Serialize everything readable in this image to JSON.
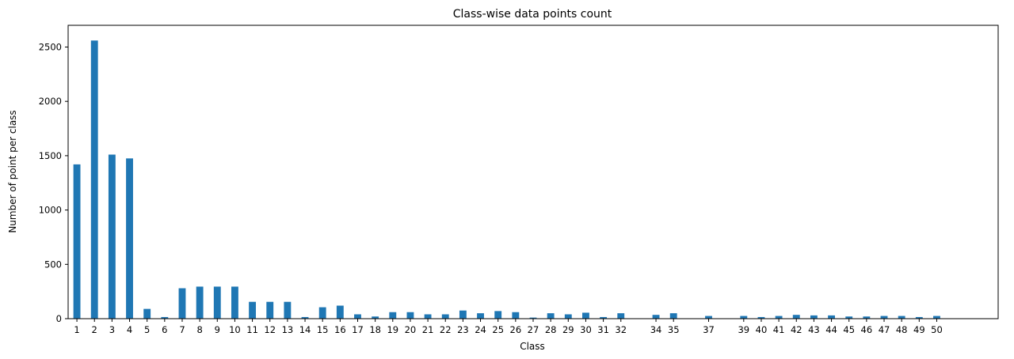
{
  "chart_data": {
    "type": "bar",
    "title": "Class-wise data points count",
    "xlabel": "Class",
    "ylabel": "Number of point per class",
    "ylim": [
      0,
      2700
    ],
    "xlim": [
      -0.5,
      52.5
    ],
    "yticks": [
      0,
      500,
      1000,
      1500,
      2000,
      2500
    ],
    "bar_width": 0.4,
    "bar_color": "#1f77b4",
    "grid": false,
    "categories": [
      "1",
      "2",
      "3",
      "4",
      "5",
      "6",
      "7",
      "8",
      "9",
      "10",
      "11",
      "12",
      "13",
      "14",
      "15",
      "16",
      "17",
      "18",
      "19",
      "20",
      "21",
      "22",
      "23",
      "24",
      "25",
      "26",
      "27",
      "28",
      "29",
      "30",
      "31",
      "32",
      "34",
      "35",
      "37",
      "39",
      "40",
      "41",
      "42",
      "43",
      "44",
      "45",
      "46",
      "47",
      "48",
      "49",
      "50"
    ],
    "values": [
      1420,
      2560,
      1510,
      1475,
      90,
      15,
      280,
      295,
      295,
      295,
      155,
      155,
      155,
      15,
      105,
      120,
      40,
      20,
      60,
      60,
      40,
      40,
      75,
      50,
      70,
      60,
      10,
      50,
      40,
      55,
      15,
      50,
      35,
      50,
      25,
      25,
      15,
      25,
      35,
      30,
      30,
      20,
      20,
      25,
      25,
      15,
      25
    ]
  }
}
